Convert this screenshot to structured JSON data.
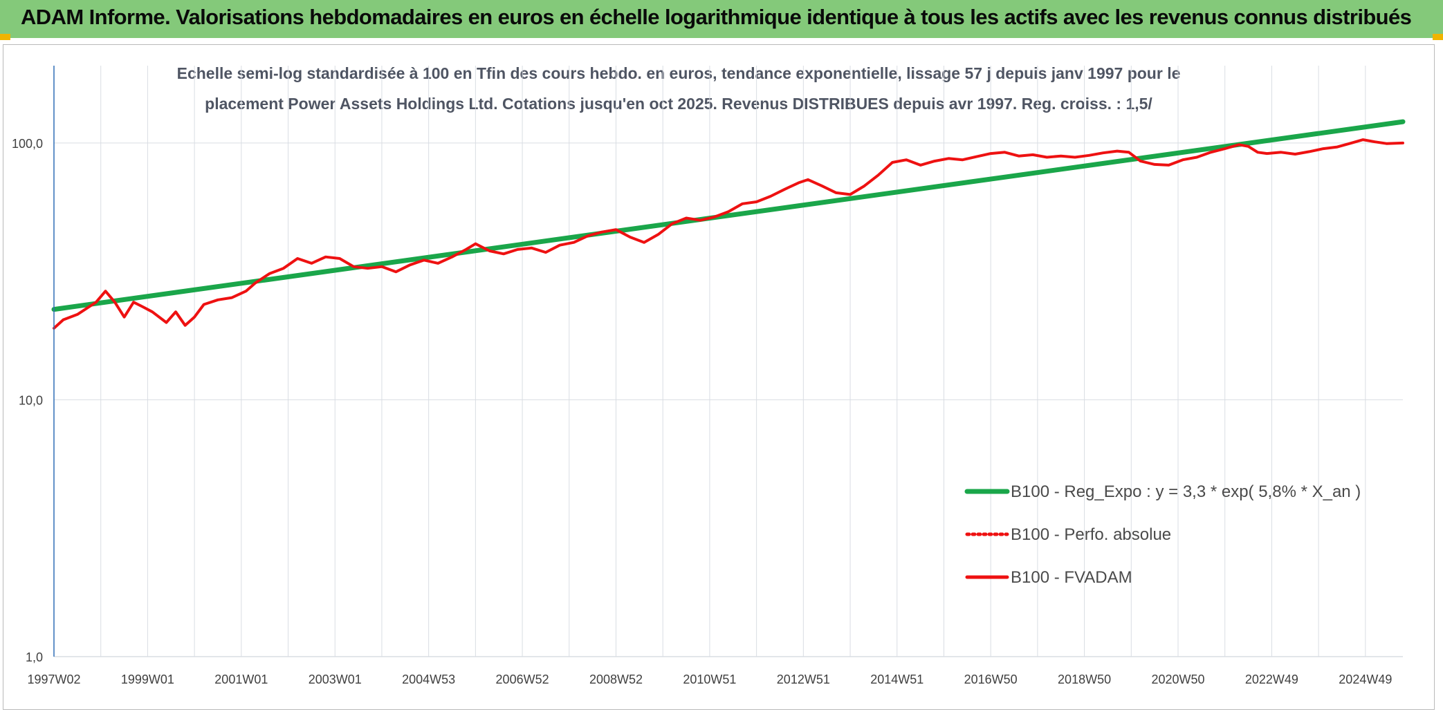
{
  "banner": {
    "title": "ADAM Informe. Valorisations hebdomadaires en euros en échelle logarithmique identique à tous les actifs avec les revenus connus distribués"
  },
  "colors": {
    "banner_bg": "#84c97a",
    "accent_corner": "#f0b400",
    "trend_line": "#1aa64a",
    "price_line": "#ee1111",
    "grid": "#d9dde3",
    "axis": "#2e6db5",
    "text": "#404040"
  },
  "chart_data": {
    "type": "line",
    "title_lines": [
      "Echelle semi-log standardisée à 100 en Tfin des cours hebdo. en euros, tendance exponentielle, lissage 57 j depuis janv 1997 pour le",
      "placement Power Assets Holdings Ltd. Cotations jusqu'en oct 2025. Revenus DISTRIBUES depuis avr 1997. Reg. croiss. : 1,5/"
    ],
    "y_scale": "log",
    "ylim": [
      1,
      200
    ],
    "y_ticks": [
      "1,0",
      "10,0",
      "100,0"
    ],
    "x_ticks": [
      "1997W02",
      "1999W01",
      "2001W01",
      "2003W01",
      "2004W53",
      "2006W52",
      "2008W52",
      "2010W51",
      "2012W51",
      "2014W51",
      "2016W50",
      "2018W50",
      "2020W50",
      "2022W49",
      "2024W49"
    ],
    "xlim": [
      1997.0,
      2025.8
    ],
    "grid": true,
    "legend_position": "bottom-right",
    "series": [
      {
        "name": "B100 - Reg_Expo : y = 3,3 * exp( 5,8% *  X_an )",
        "style": "solid-thick",
        "points": [
          [
            1997.0,
            22.5
          ],
          [
            2025.8,
            121
          ]
        ]
      },
      {
        "name": "B100 - Perfo. absolue",
        "style": "dotted",
        "points": []
      },
      {
        "name": "B100 - FVADAM",
        "style": "solid",
        "points": [
          [
            1997.0,
            19
          ],
          [
            1997.2,
            20.5
          ],
          [
            1997.5,
            21.5
          ],
          [
            1997.9,
            24
          ],
          [
            1998.1,
            26.5
          ],
          [
            1998.3,
            24
          ],
          [
            1998.5,
            21
          ],
          [
            1998.7,
            24
          ],
          [
            1998.9,
            23
          ],
          [
            1999.1,
            22
          ],
          [
            1999.4,
            20
          ],
          [
            1999.6,
            22
          ],
          [
            1999.8,
            19.5
          ],
          [
            2000.0,
            21
          ],
          [
            2000.2,
            23.5
          ],
          [
            2000.5,
            24.5
          ],
          [
            2000.8,
            25
          ],
          [
            2001.1,
            26.5
          ],
          [
            2001.3,
            28.5
          ],
          [
            2001.6,
            31
          ],
          [
            2001.9,
            32.5
          ],
          [
            2002.2,
            35.5
          ],
          [
            2002.5,
            34
          ],
          [
            2002.8,
            36
          ],
          [
            2003.1,
            35.5
          ],
          [
            2003.4,
            33
          ],
          [
            2003.7,
            32.5
          ],
          [
            2004.0,
            33
          ],
          [
            2004.3,
            31.5
          ],
          [
            2004.6,
            33.5
          ],
          [
            2004.9,
            35
          ],
          [
            2005.2,
            34
          ],
          [
            2005.5,
            36
          ],
          [
            2005.8,
            38.5
          ],
          [
            2006.0,
            40.5
          ],
          [
            2006.3,
            38
          ],
          [
            2006.6,
            37
          ],
          [
            2006.9,
            38.5
          ],
          [
            2007.2,
            39
          ],
          [
            2007.5,
            37.5
          ],
          [
            2007.8,
            40
          ],
          [
            2008.1,
            41
          ],
          [
            2008.4,
            43.5
          ],
          [
            2008.7,
            45
          ],
          [
            2009.0,
            46
          ],
          [
            2009.3,
            43
          ],
          [
            2009.6,
            41
          ],
          [
            2009.9,
            44
          ],
          [
            2010.2,
            48.5
          ],
          [
            2010.5,
            51
          ],
          [
            2010.8,
            50
          ],
          [
            2011.1,
            51.5
          ],
          [
            2011.4,
            54
          ],
          [
            2011.7,
            58
          ],
          [
            2012.0,
            59
          ],
          [
            2012.3,
            62
          ],
          [
            2012.6,
            66
          ],
          [
            2012.9,
            70
          ],
          [
            2013.1,
            72
          ],
          [
            2013.4,
            68
          ],
          [
            2013.7,
            64
          ],
          [
            2014.0,
            63
          ],
          [
            2014.3,
            68
          ],
          [
            2014.6,
            75
          ],
          [
            2014.9,
            84
          ],
          [
            2015.2,
            86
          ],
          [
            2015.5,
            82
          ],
          [
            2015.8,
            85
          ],
          [
            2016.1,
            87
          ],
          [
            2016.4,
            86
          ],
          [
            2016.7,
            88.5
          ],
          [
            2017.0,
            91
          ],
          [
            2017.3,
            92
          ],
          [
            2017.6,
            89
          ],
          [
            2017.9,
            90
          ],
          [
            2018.2,
            88
          ],
          [
            2018.5,
            89
          ],
          [
            2018.8,
            88
          ],
          [
            2019.1,
            89.5
          ],
          [
            2019.4,
            91.5
          ],
          [
            2019.7,
            93
          ],
          [
            2019.95,
            92
          ],
          [
            2020.2,
            85
          ],
          [
            2020.5,
            82.5
          ],
          [
            2020.8,
            82
          ],
          [
            2021.1,
            86
          ],
          [
            2021.4,
            88
          ],
          [
            2021.7,
            92
          ],
          [
            2022.0,
            95
          ],
          [
            2022.3,
            98.5
          ],
          [
            2022.5,
            97
          ],
          [
            2022.7,
            92
          ],
          [
            2022.9,
            91
          ],
          [
            2023.2,
            92
          ],
          [
            2023.5,
            90.5
          ],
          [
            2023.8,
            92.5
          ],
          [
            2024.1,
            95
          ],
          [
            2024.4,
            96.5
          ],
          [
            2024.7,
            100
          ],
          [
            2024.95,
            103
          ],
          [
            2025.2,
            101
          ],
          [
            2025.45,
            99.5
          ],
          [
            2025.8,
            100
          ]
        ]
      }
    ]
  }
}
